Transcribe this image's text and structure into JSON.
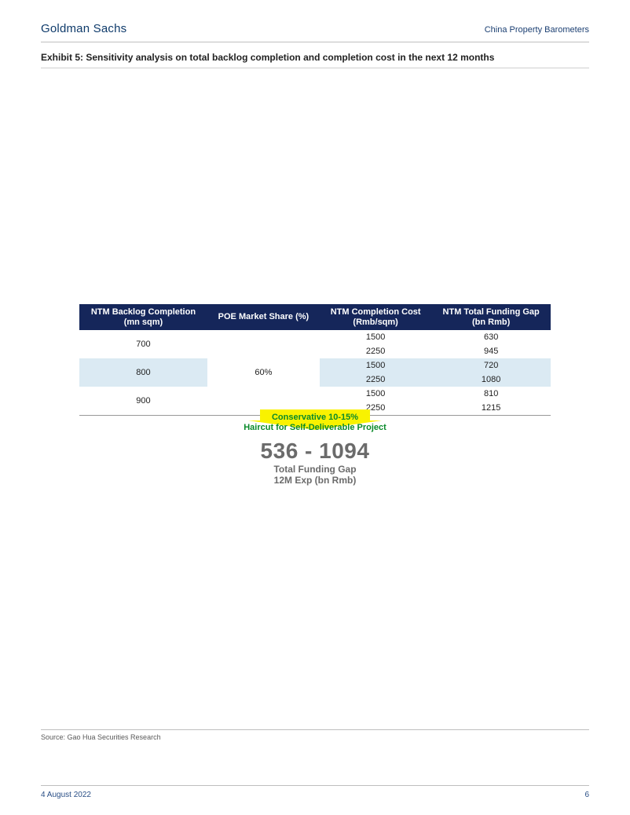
{
  "header": {
    "brand": "Goldman Sachs",
    "series": "China Property Barometers"
  },
  "exhibit": {
    "title": "Exhibit 5: Sensitivity analysis on total backlog completion and completion cost in the next 12 months"
  },
  "table": {
    "headers": {
      "c1_line1": "NTM Backlog Completion",
      "c1_line2": "(mn sqm)",
      "c2_line1": "POE Market Share (%)",
      "c3_line1": "NTM Completion Cost",
      "c3_line2": "(Rmb/sqm)",
      "c4_line1": "NTM Total Funding Gap",
      "c4_line2": "(bn Rmb)"
    },
    "header_bg": "#15265a",
    "header_fg": "#ffffff",
    "band_bg": "#dbeaf3",
    "poe_share": "60%",
    "rows": [
      {
        "backlog": "700",
        "cost": "1500",
        "gap": "630"
      },
      {
        "backlog": "",
        "cost": "2250",
        "gap": "945"
      },
      {
        "backlog": "800",
        "cost": "1500",
        "gap": "720",
        "band": true
      },
      {
        "backlog": "",
        "cost": "2250",
        "gap": "1080",
        "band": true
      },
      {
        "backlog": "900",
        "cost": "1500",
        "gap": "810"
      },
      {
        "backlog": "",
        "cost": "2250",
        "gap": "1215"
      }
    ]
  },
  "callout": {
    "line1": "Conservative 10-15%",
    "line2": "Haircut for Self-Deliverable Project",
    "arrow_color": "#f9f200",
    "text_color": "#0a8a2a",
    "big_number": "536 - 1094",
    "big_sub1": "Total Funding Gap",
    "big_sub2": "12M Exp (bn Rmb)",
    "big_color": "#6b6b6b"
  },
  "source": "Source: Gao Hua Securities Research",
  "footer": {
    "date": "4 August 2022",
    "page": "6",
    "color": "#2a4f86"
  }
}
